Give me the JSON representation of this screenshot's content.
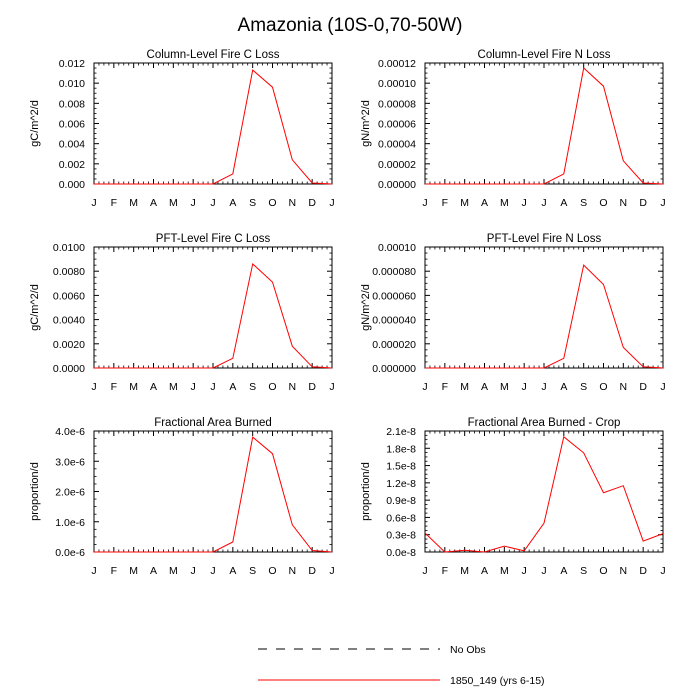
{
  "figure": {
    "title": "Amazonia (10S-0,70-50W)"
  },
  "legend": {
    "items": [
      {
        "label": "No Obs",
        "color": "#000000",
        "style": "dashed"
      },
      {
        "label": "1850_149 (yrs 6-15)",
        "color": "#ff0000",
        "style": "solid"
      }
    ]
  },
  "chart_data": [
    {
      "type": "line",
      "title": "Column-Level Fire C Loss",
      "ylabel": "gC/m^2/d",
      "categories": [
        "J",
        "F",
        "M",
        "A",
        "M",
        "J",
        "J",
        "A",
        "S",
        "O",
        "N",
        "D",
        "J"
      ],
      "ylim": [
        0,
        0.012
      ],
      "yticks": [
        "0.000",
        "0.002",
        "0.004",
        "0.006",
        "0.008",
        "0.010",
        "0.012"
      ],
      "series": [
        {
          "name": "1850_149 (yrs 6-15)",
          "color": "#ff0000",
          "values": [
            0,
            0,
            0,
            0,
            0,
            0,
            0,
            0.001,
            0.0113,
            0.0096,
            0.0024,
            0.0001,
            0
          ]
        }
      ]
    },
    {
      "type": "line",
      "title": "Column-Level Fire N Loss",
      "ylabel": "gN/m^2/d",
      "categories": [
        "J",
        "F",
        "M",
        "A",
        "M",
        "J",
        "J",
        "A",
        "S",
        "O",
        "N",
        "D",
        "J"
      ],
      "ylim": [
        0,
        0.00012
      ],
      "yticks": [
        "0.00000",
        "0.00002",
        "0.00004",
        "0.00006",
        "0.00008",
        "0.00010",
        "0.00012"
      ],
      "series": [
        {
          "name": "1850_149 (yrs 6-15)",
          "color": "#ff0000",
          "values": [
            0,
            0,
            0,
            0,
            0,
            0,
            0,
            1e-05,
            0.000115,
            9.7e-05,
            2.3e-05,
            1e-06,
            0
          ]
        }
      ]
    },
    {
      "type": "line",
      "title": "PFT-Level Fire C Loss",
      "ylabel": "gC/m^2/d",
      "categories": [
        "J",
        "F",
        "M",
        "A",
        "M",
        "J",
        "J",
        "A",
        "S",
        "O",
        "N",
        "D",
        "J"
      ],
      "ylim": [
        0,
        0.01
      ],
      "yticks": [
        "0.0000",
        "0.0020",
        "0.0040",
        "0.0060",
        "0.0080",
        "0.0100"
      ],
      "series": [
        {
          "name": "1850_149 (yrs 6-15)",
          "color": "#ff0000",
          "values": [
            0,
            0,
            0,
            0,
            0,
            0,
            0,
            0.0008,
            0.0086,
            0.0071,
            0.0018,
            0.0001,
            0
          ]
        }
      ]
    },
    {
      "type": "line",
      "title": "PFT-Level Fire N Loss",
      "ylabel": "gN/m^2/d",
      "categories": [
        "J",
        "F",
        "M",
        "A",
        "M",
        "J",
        "J",
        "A",
        "S",
        "O",
        "N",
        "D",
        "J"
      ],
      "ylim": [
        0,
        0.0001
      ],
      "yticks": [
        "0.000000",
        "0.000020",
        "0.000040",
        "0.000060",
        "0.000080",
        "0.00010"
      ],
      "series": [
        {
          "name": "1850_149 (yrs 6-15)",
          "color": "#ff0000",
          "values": [
            0,
            0,
            0,
            0,
            0,
            0,
            0,
            8e-06,
            8.5e-05,
            6.9e-05,
            1.7e-05,
            1e-06,
            0
          ]
        }
      ]
    },
    {
      "type": "line",
      "title": "Fractional Area Burned",
      "ylabel": "proportion/d",
      "categories": [
        "J",
        "F",
        "M",
        "A",
        "M",
        "J",
        "J",
        "A",
        "S",
        "O",
        "N",
        "D",
        "J"
      ],
      "ylim": [
        0,
        4e-06
      ],
      "yticks": [
        "0.0e-6",
        "1.0e-6",
        "2.0e-6",
        "3.0e-6",
        "4.0e-6"
      ],
      "series": [
        {
          "name": "1850_149 (yrs 6-15)",
          "color": "#ff0000",
          "values": [
            0,
            0,
            0,
            0,
            0,
            0,
            0,
            3.3e-07,
            3.8e-06,
            3.25e-06,
            9e-07,
            5e-08,
            0
          ]
        }
      ]
    },
    {
      "type": "line",
      "title": "Fractional Area Burned - Crop",
      "ylabel": "proportion/d",
      "categories": [
        "J",
        "F",
        "M",
        "A",
        "M",
        "J",
        "J",
        "A",
        "S",
        "O",
        "N",
        "D",
        "J"
      ],
      "ylim": [
        0,
        2.1e-08
      ],
      "yticks": [
        "0.0e-8",
        "0.3e-8",
        "0.6e-8",
        "0.9e-8",
        "1.2e-8",
        "1.5e-8",
        "1.8e-8",
        "2.1e-8"
      ],
      "series": [
        {
          "name": "1850_149 (yrs 6-15)",
          "color": "#ff0000",
          "values": [
            3.3e-09,
            0,
            3e-10,
            0,
            1e-09,
            2e-10,
            5e-09,
            2e-08,
            1.72e-08,
            1.03e-08,
            1.15e-08,
            1.9e-09,
            3.2e-09
          ]
        }
      ]
    }
  ]
}
